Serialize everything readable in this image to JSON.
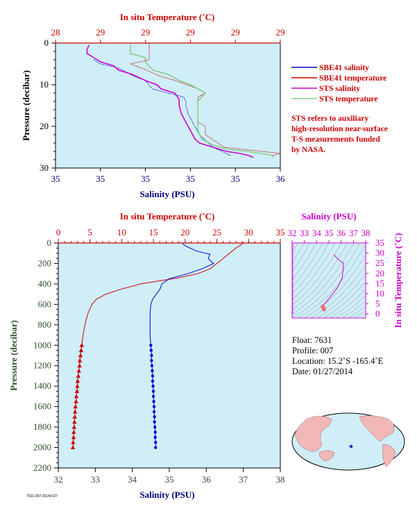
{
  "colors": {
    "background": "#cfeef8",
    "temperature": "#cc0000",
    "salinity": "#0000cc",
    "sts_salinity": "#cc00cc",
    "sts_temperature": "#88cc88",
    "axis_text_dark": "#2f4f2f"
  },
  "chart_data": [
    {
      "id": "near-surface",
      "type": "line",
      "top_axis": {
        "title": "In situ Temperature (˚C)",
        "ticks": [
          "28",
          "29",
          "29",
          "29",
          "29",
          "29"
        ]
      },
      "bottom_axis": {
        "title": "Salinity (PSU)",
        "ticks": [
          "35",
          "35",
          "35",
          "35",
          "35",
          "36"
        ]
      },
      "y_axis": {
        "title": "Pressure (decibar)",
        "ticks": [
          "0",
          "10",
          "20",
          "30"
        ],
        "ylim": [
          0,
          30
        ],
        "reversed": true
      },
      "xlim_salinity": [
        35.0,
        36.0
      ],
      "xlim_temperature": [
        28.8,
        29.4
      ],
      "legend": {
        "placement": "right",
        "entries": [
          {
            "label": "SBE41 salinity",
            "color": "#0000cc"
          },
          {
            "label": "SBE41 temperature",
            "color": "#cc0000"
          },
          {
            "label": "STS salinity",
            "color": "#cc00cc"
          },
          {
            "label": "STS temperature",
            "color": "#88cc88"
          }
        ]
      },
      "note": [
        "STS refers to auxiliary",
        "high-resolution near-surface",
        "T-S measurements funded",
        "by NASA."
      ],
      "series": [
        {
          "name": "SBE41 salinity",
          "x_unit": "salinity",
          "pressure": [
            4,
            5,
            6,
            8,
            9,
            11,
            12,
            12.5,
            13,
            14,
            15,
            17,
            18,
            20,
            22,
            25,
            27
          ],
          "values": [
            35.17,
            35.2,
            35.28,
            35.35,
            35.4,
            35.43,
            35.5,
            35.54,
            35.57,
            35.58,
            35.58,
            35.59,
            35.6,
            35.62,
            35.64,
            35.7,
            35.78
          ]
        },
        {
          "name": "SBE41 temperature",
          "x_unit": "temperature",
          "pressure": [
            0,
            4,
            5,
            6,
            8,
            9,
            11,
            12,
            13,
            15,
            17,
            19,
            20,
            22,
            25,
            26,
            26.5,
            27
          ],
          "values": [
            29.05,
            29.05,
            29.0,
            29.03,
            29.08,
            29.12,
            29.18,
            29.2,
            29.18,
            29.18,
            29.18,
            29.18,
            29.2,
            29.2,
            29.25,
            29.35,
            29.4,
            29.38
          ]
        },
        {
          "name": "STS salinity",
          "x_unit": "salinity",
          "pressure": [
            0.5,
            1.5,
            2.5,
            3.5,
            4.5,
            5.5,
            6.5,
            7.5,
            9.0,
            10.0,
            11.0,
            12.0,
            13.5,
            15.0,
            17.0,
            19.0,
            21.0,
            23.0,
            24.0,
            25.0,
            26.0,
            26.5,
            27.0,
            27.5
          ],
          "values": [
            35.15,
            35.14,
            35.14,
            35.17,
            35.2,
            35.26,
            35.28,
            35.34,
            35.4,
            35.45,
            35.47,
            35.53,
            35.55,
            35.55,
            35.56,
            35.58,
            35.6,
            35.62,
            35.64,
            35.7,
            35.76,
            35.82,
            35.86,
            35.88
          ]
        },
        {
          "name": "STS temperature",
          "x_unit": "temperature",
          "pressure": [
            0.5,
            1.5,
            2.5,
            3.0,
            3.5,
            4.5,
            5.5,
            6.5,
            7.5,
            9.0,
            10.0,
            11.0,
            12.0,
            13.0,
            14.0,
            15.0,
            17.0,
            19.0,
            21.0,
            23.0,
            24.5,
            25.5,
            26.0,
            26.5,
            27.0,
            27.5
          ],
          "values": [
            29.0,
            29.0,
            29.0,
            29.02,
            29.04,
            29.04,
            29.05,
            29.06,
            29.1,
            29.13,
            29.16,
            29.18,
            29.2,
            29.19,
            29.18,
            29.18,
            29.18,
            29.18,
            29.18,
            29.19,
            29.22,
            29.26,
            29.31,
            29.35,
            29.38,
            29.38
          ]
        }
      ]
    },
    {
      "id": "full-profile",
      "type": "line",
      "top_axis": {
        "title": "In situ Temperature (˚C)",
        "ticks": [
          "0",
          "5",
          "10",
          "15",
          "20",
          "25",
          "30",
          "35"
        ]
      },
      "bottom_axis": {
        "title": "Salinity (PSU)",
        "ticks": [
          "32",
          "33",
          "34",
          "35",
          "36",
          "37",
          "38"
        ]
      },
      "y_axis": {
        "title": "Pressure (decibar)",
        "ticks": [
          "0",
          "200",
          "400",
          "600",
          "800",
          "1000",
          "1200",
          "1400",
          "1600",
          "1800",
          "2000",
          "2200"
        ],
        "ylim": [
          0,
          2200
        ],
        "reversed": true
      },
      "xlim_salinity": [
        32,
        38
      ],
      "xlim_temperature": [
        0,
        35
      ],
      "series": [
        {
          "name": "Temperature",
          "x_unit": "temperature",
          "marker": "triangle",
          "pressure": [
            0,
            50,
            100,
            150,
            200,
            250,
            300,
            340,
            370,
            400,
            450,
            500,
            550,
            600,
            700,
            800,
            900,
            1000,
            1050,
            1100,
            1150,
            1200,
            1250,
            1300,
            1350,
            1400,
            1450,
            1500,
            1550,
            1600,
            1650,
            1700,
            1750,
            1800,
            1850,
            1900,
            1950,
            2000
          ],
          "values": [
            29.2,
            28.0,
            27.0,
            26.0,
            25.0,
            24.0,
            22.0,
            19.0,
            16.0,
            13.0,
            10.0,
            7.5,
            6.0,
            5.3,
            4.6,
            4.2,
            3.9,
            3.7,
            3.6,
            3.5,
            3.4,
            3.35,
            3.25,
            3.15,
            3.05,
            3.0,
            2.95,
            2.85,
            2.8,
            2.7,
            2.65,
            2.6,
            2.55,
            2.5,
            2.45,
            2.4,
            2.35,
            2.3
          ]
        },
        {
          "name": "Salinity",
          "x_unit": "salinity",
          "marker": "circle",
          "pressure": [
            0,
            20,
            40,
            80,
            110,
            150,
            170,
            200,
            250,
            300,
            350,
            400,
            450,
            500,
            550,
            600,
            700,
            800,
            900,
            1000,
            1050,
            1100,
            1150,
            1200,
            1250,
            1300,
            1350,
            1400,
            1450,
            1500,
            1550,
            1600,
            1650,
            1700,
            1750,
            1800,
            1850,
            1900,
            1950,
            2000
          ],
          "values": [
            35.35,
            35.4,
            35.5,
            35.75,
            36.1,
            36.05,
            36.1,
            36.2,
            35.9,
            35.5,
            35.0,
            34.8,
            34.75,
            34.65,
            34.55,
            34.5,
            34.48,
            34.48,
            34.48,
            34.5,
            34.51,
            34.52,
            34.52,
            34.53,
            34.54,
            34.55,
            34.55,
            34.56,
            34.57,
            34.57,
            34.58,
            34.59,
            34.59,
            34.6,
            34.6,
            34.61,
            34.62,
            34.62,
            34.63,
            34.63
          ]
        }
      ]
    },
    {
      "id": "ts-diagram",
      "type": "line",
      "top_axis": {
        "title": "Salinity (PSU)",
        "ticks": [
          "32",
          "33",
          "34",
          "35",
          "36",
          "37",
          "38"
        ]
      },
      "right_axis": {
        "title": "In situ Temperature (˚C)",
        "ticks": [
          "0",
          "5",
          "10",
          "15",
          "20",
          "25",
          "30",
          "35"
        ]
      },
      "xlim_salinity": [
        32,
        38
      ],
      "ylim_temperature": [
        -2,
        35
      ],
      "series": [
        {
          "name": "T-S",
          "salinity": [
            34.6,
            34.55,
            34.5,
            34.5,
            34.7,
            35.0,
            35.3,
            35.7,
            36.1,
            36.2,
            35.75,
            35.4
          ],
          "temperature": [
            2.3,
            3.0,
            3.6,
            4.2,
            5.3,
            7.5,
            10.0,
            13.0,
            18.0,
            25.0,
            27.0,
            29.2
          ]
        }
      ]
    }
  ],
  "info": {
    "float": "Float:  7631",
    "profile": "Profile:  007",
    "location": "Location:  15.2˚S  -165.4˚E",
    "date": "Date:  01/27/2014"
  },
  "footer_code": "7631-007-20140127"
}
